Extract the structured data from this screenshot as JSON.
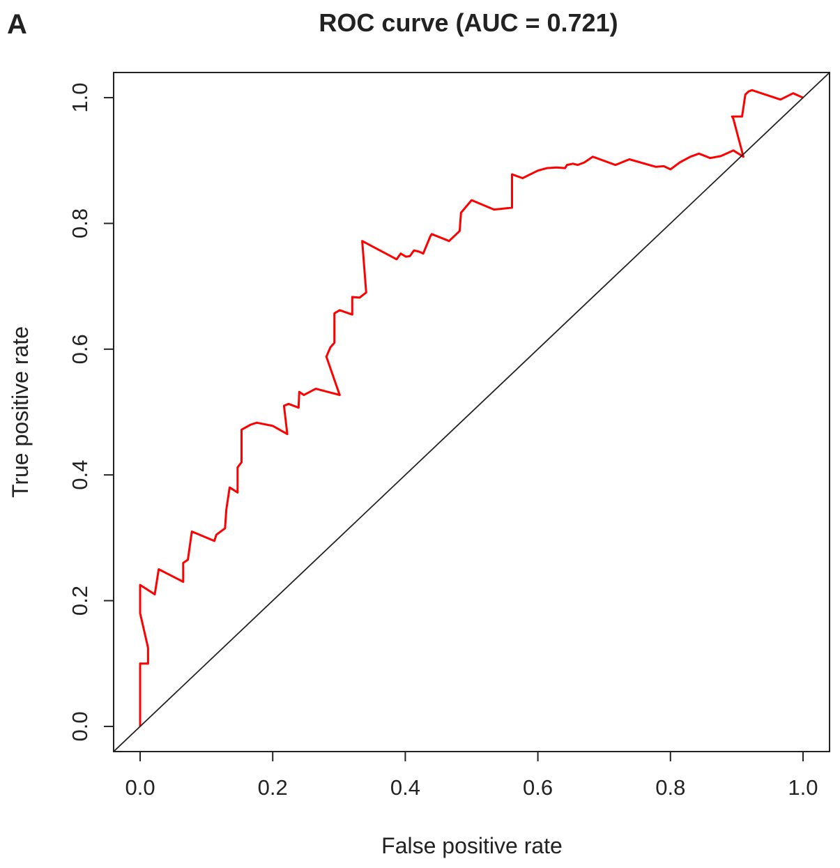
{
  "panel_label": "A",
  "chart_data": {
    "type": "line",
    "title": "ROC curve (AUC = 0.721)",
    "xlabel": "False positive rate",
    "ylabel": "True positive rate",
    "xlim": [
      -0.04,
      1.04
    ],
    "ylim": [
      -0.04,
      1.04
    ],
    "x_ticks": [
      {
        "value": 0.0,
        "label": "0.0"
      },
      {
        "value": 0.2,
        "label": "0.2"
      },
      {
        "value": 0.4,
        "label": "0.4"
      },
      {
        "value": 0.6,
        "label": "0.6"
      },
      {
        "value": 0.8,
        "label": "0.8"
      },
      {
        "value": 1.0,
        "label": "1.0"
      }
    ],
    "y_ticks": [
      {
        "value": 0.0,
        "label": "0.0"
      },
      {
        "value": 0.2,
        "label": "0.2"
      },
      {
        "value": 0.4,
        "label": "0.4"
      },
      {
        "value": 0.6,
        "label": "0.6"
      },
      {
        "value": 0.8,
        "label": "0.8"
      },
      {
        "value": 1.0,
        "label": "1.0"
      }
    ],
    "grid": false,
    "legend": "none",
    "series": [
      {
        "color": "#ff0000",
        "x": [
          0.0,
          0.0,
          0.012,
          0.012,
          0.0,
          0.0,
          0.022,
          0.028,
          0.065,
          0.065,
          0.072,
          0.078,
          0.112,
          0.115,
          0.128,
          0.13,
          0.135,
          0.147,
          0.147,
          0.153,
          0.153,
          0.167,
          0.176,
          0.2,
          0.222,
          0.217,
          0.224,
          0.239,
          0.24,
          0.247,
          0.265,
          0.283,
          0.301,
          0.281,
          0.287,
          0.293,
          0.293,
          0.301,
          0.32,
          0.32,
          0.331,
          0.341,
          0.335,
          0.387,
          0.393,
          0.401,
          0.407,
          0.413,
          0.421,
          0.427,
          0.438,
          0.44,
          0.466,
          0.482,
          0.484,
          0.5,
          0.534,
          0.561,
          0.561,
          0.577,
          0.6,
          0.614,
          0.628,
          0.641,
          0.644,
          0.653,
          0.66,
          0.67,
          0.683,
          0.717,
          0.738,
          0.778,
          0.79,
          0.8,
          0.814,
          0.83,
          0.843,
          0.86,
          0.876,
          0.895,
          0.91,
          0.895,
          0.893,
          0.908,
          0.913,
          0.918,
          0.923,
          0.966,
          0.985,
          1.0
        ],
        "y": [
          0.0,
          0.1,
          0.1,
          0.125,
          0.18,
          0.225,
          0.21,
          0.25,
          0.23,
          0.26,
          0.265,
          0.31,
          0.295,
          0.305,
          0.315,
          0.345,
          0.38,
          0.372,
          0.412,
          0.42,
          0.472,
          0.48,
          0.483,
          0.478,
          0.465,
          0.51,
          0.513,
          0.507,
          0.532,
          0.527,
          0.537,
          0.532,
          0.527,
          0.588,
          0.603,
          0.61,
          0.657,
          0.662,
          0.655,
          0.683,
          0.682,
          0.69,
          0.772,
          0.743,
          0.752,
          0.747,
          0.748,
          0.757,
          0.755,
          0.752,
          0.78,
          0.783,
          0.772,
          0.788,
          0.817,
          0.837,
          0.822,
          0.825,
          0.878,
          0.872,
          0.884,
          0.888,
          0.889,
          0.888,
          0.893,
          0.895,
          0.893,
          0.897,
          0.906,
          0.893,
          0.902,
          0.89,
          0.891,
          0.886,
          0.897,
          0.906,
          0.911,
          0.904,
          0.907,
          0.916,
          0.906,
          0.966,
          0.97,
          0.97,
          1.005,
          1.01,
          1.012,
          0.997,
          1.007,
          1.0
        ]
      },
      {
        "color": "#222222",
        "x": [
          -0.04,
          1.04
        ],
        "y": [
          -0.04,
          1.04
        ]
      }
    ]
  }
}
